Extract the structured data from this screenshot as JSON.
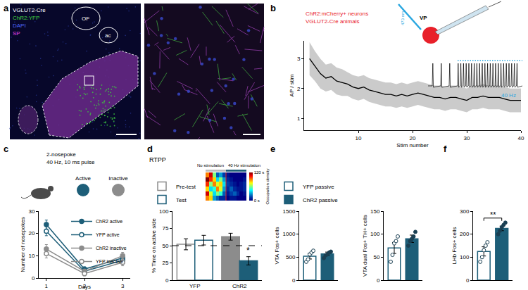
{
  "panel_labels": [
    "a",
    "b",
    "c",
    "d",
    "e",
    "f"
  ],
  "panel_a": {
    "genotype": "VGLUT2-Cre",
    "stains": [
      {
        "text": "ChR2:YFP",
        "color": "#3fd13f"
      },
      {
        "text": "DAPI",
        "color": "#4a66ff"
      },
      {
        "text": "SP",
        "color": "#e040e0"
      }
    ],
    "regions": [
      "OF",
      "ac"
    ]
  },
  "panel_b": {
    "cells": "ChR2:mCherry+ neurons",
    "animals": "VGLUT2-Cre animals",
    "region": "VP",
    "light": "473 nm",
    "trace_label": "40 Hz"
  },
  "panel_c": {
    "protocol": "2-nosepoke",
    "stimulation": "40 Hz, 10 ms pulse",
    "ports": [
      {
        "text": "Active",
        "color": "#1d5e78"
      },
      {
        "text": "Inactive",
        "color": "#8c8c8c"
      }
    ]
  },
  "chart_data": [
    {
      "type": "line",
      "xlabel": "Stim number",
      "ylabel": "AP / stim",
      "color": "#000000",
      "x": [
        1,
        2,
        3,
        4,
        5,
        6,
        7,
        8,
        9,
        10,
        11,
        12,
        13,
        14,
        15,
        16,
        17,
        18,
        19,
        20,
        21,
        22,
        23,
        24,
        25,
        26,
        27,
        28,
        29,
        30,
        31,
        32,
        33,
        34,
        35,
        36,
        37,
        38,
        39,
        40
      ],
      "values": [
        3.0,
        2.75,
        2.5,
        2.35,
        2.4,
        2.25,
        2.2,
        2.15,
        2.05,
        2.0,
        2.05,
        1.95,
        1.9,
        1.85,
        1.8,
        1.8,
        1.75,
        1.8,
        1.75,
        1.8,
        1.85,
        1.8,
        1.75,
        1.7,
        1.7,
        1.65,
        1.7,
        1.7,
        1.65,
        1.6,
        1.7,
        1.7,
        1.75,
        1.7,
        1.7,
        1.7,
        1.65,
        1.6,
        1.6,
        1.6
      ],
      "error": [
        0.55,
        0.5,
        0.5,
        0.45,
        0.45,
        0.45,
        0.45,
        0.4,
        0.4,
        0.4,
        0.4,
        0.4,
        0.4,
        0.4,
        0.4,
        0.4,
        0.4,
        0.4,
        0.4,
        0.4,
        0.4,
        0.4,
        0.4,
        0.4,
        0.4,
        0.4,
        0.4,
        0.4,
        0.4,
        0.4,
        0.4,
        0.4,
        0.4,
        0.4,
        0.4,
        0.4,
        0.4,
        0.4,
        0.4,
        0.4
      ],
      "xlim": [
        0,
        40
      ],
      "xticks": [
        10,
        20,
        30,
        40
      ],
      "ylim": [
        0.6,
        3.6
      ],
      "yticks": [
        1,
        2,
        3
      ]
    },
    {
      "type": "line",
      "xlabel": "Days",
      "ylabel": "Number of nosepokes",
      "x": [
        1,
        2,
        3
      ],
      "xlim": [
        0.8,
        3.2
      ],
      "xticks": [
        1,
        2,
        3
      ],
      "ylim": [
        0,
        30
      ],
      "yticks": [
        0,
        10,
        20,
        30
      ],
      "legend": "top right",
      "series": [
        {
          "name": "ChR2 active",
          "color": "#1d5e78",
          "marker": "filled",
          "values": [
            24,
            4,
            9
          ],
          "error": [
            2,
            1,
            1.5
          ]
        },
        {
          "name": "YFP active",
          "color": "#1d5e78",
          "marker": "open",
          "values": [
            21,
            3,
            8
          ],
          "error": [
            2,
            1,
            1.5
          ]
        },
        {
          "name": "ChR2 inactive",
          "color": "#8c8c8c",
          "marker": "filled",
          "values": [
            13,
            3,
            10
          ],
          "error": [
            2,
            1,
            1.5
          ]
        },
        {
          "name": "YFP inactive",
          "color": "#8c8c8c",
          "marker": "open",
          "values": [
            11,
            2,
            7
          ],
          "error": [
            2,
            1,
            1.5
          ]
        }
      ]
    },
    {
      "type": "bar",
      "title": "RTPP",
      "ylabel": "% Time on active side",
      "categories": [
        "YFP",
        "ChR2"
      ],
      "ylim": [
        0,
        100
      ],
      "yticks": [
        0,
        25,
        50,
        75,
        100
      ],
      "reference_line": 50,
      "legend": "top left",
      "series": [
        {
          "name": "Pre-test",
          "color": "#8c8c8c",
          "colors": [
            "#ffffff",
            "#8c8c8c"
          ],
          "values": [
            52,
            63
          ],
          "error": [
            8,
            5
          ]
        },
        {
          "name": "Test",
          "color": "#1d5e78",
          "colors": [
            "#ffffff",
            "#1d5e78"
          ],
          "values": [
            58,
            28
          ],
          "error": [
            7,
            6
          ]
        }
      ],
      "annotations": [
        {
          "text": "*",
          "category": "ChR2",
          "series": "Test"
        }
      ]
    },
    {
      "type": "heatmap",
      "tick_labels": false,
      "labels": [
        "No stimulation",
        "40 Hz stimulation"
      ],
      "colorbar": {
        "title": "Occupation density",
        "range": [
          0,
          120
        ],
        "ticks": [
          {
            "value": 120,
            "label": "120 s"
          },
          {
            "value": 0,
            "label": "0 s"
          }
        ]
      },
      "cells": [
        [
          90,
          110,
          60,
          20,
          30,
          15,
          5,
          0,
          0,
          0,
          0,
          0
        ],
        [
          120,
          100,
          80,
          40,
          60,
          30,
          10,
          5,
          0,
          0,
          0,
          5
        ],
        [
          100,
          60,
          90,
          70,
          80,
          40,
          15,
          10,
          5,
          0,
          5,
          10
        ],
        [
          80,
          40,
          50,
          90,
          70,
          30,
          10,
          20,
          10,
          5,
          5,
          10
        ],
        [
          110,
          70,
          40,
          60,
          50,
          20,
          5,
          15,
          20,
          10,
          0,
          5
        ],
        [
          90,
          80,
          30,
          20,
          10,
          10,
          0,
          5,
          5,
          0,
          0,
          0
        ]
      ]
    },
    {
      "type": "bar",
      "ylabel": "VTA Fos+ cells",
      "ylim": [
        0,
        1500
      ],
      "yticks": [
        0,
        500,
        1000,
        1500
      ],
      "tick_labels": "y",
      "legend": "top left",
      "series": [
        {
          "name": "YFP passive",
          "color": "#1d5e78",
          "colors": [
            "#ffffff"
          ],
          "marker": "open",
          "values": [
            520
          ],
          "error": [
            60
          ],
          "points": [
            400,
            450,
            560,
            600,
            640
          ]
        },
        {
          "name": "ChR2 passive",
          "color": "#1d5e78",
          "colors": [
            "#1d5e78"
          ],
          "marker": "filled",
          "values": [
            570
          ],
          "error": [
            40
          ],
          "points": [
            480,
            540,
            560,
            600,
            620
          ]
        }
      ]
    },
    {
      "type": "bar",
      "ylabel": "VTA dual Fos+ TH+ cells",
      "ylim": [
        0,
        150
      ],
      "yticks": [
        0,
        50,
        100,
        150
      ],
      "tick_labels": "y",
      "series": [
        {
          "name": "YFP passive",
          "color": "#1d5e78",
          "colors": [
            "#ffffff"
          ],
          "marker": "open",
          "values": [
            70
          ],
          "error": [
            12
          ],
          "points": [
            40,
            55,
            80,
            85,
            95
          ]
        },
        {
          "name": "ChR2 passive",
          "color": "#1d5e78",
          "colors": [
            "#1d5e78"
          ],
          "marker": "filled",
          "values": [
            90
          ],
          "error": [
            8
          ],
          "points": [
            75,
            85,
            90,
            95,
            105
          ]
        }
      ]
    },
    {
      "type": "bar",
      "ylabel": "LHb Fos+ cells",
      "ylim": [
        0,
        300
      ],
      "yticks": [
        0,
        100,
        200,
        300
      ],
      "tick_labels": "y",
      "series": [
        {
          "name": "YFP passive",
          "color": "#1d5e78",
          "colors": [
            "#ffffff"
          ],
          "marker": "open",
          "values": [
            125
          ],
          "error": [
            20
          ],
          "points": [
            80,
            100,
            130,
            150,
            165
          ]
        },
        {
          "name": "ChR2 passive",
          "color": "#1d5e78",
          "colors": [
            "#1d5e78"
          ],
          "marker": "filled",
          "values": [
            225
          ],
          "error": [
            10
          ],
          "points": [
            200,
            215,
            230,
            240,
            250
          ]
        }
      ],
      "annotations": [
        {
          "text": "**"
        }
      ]
    }
  ]
}
